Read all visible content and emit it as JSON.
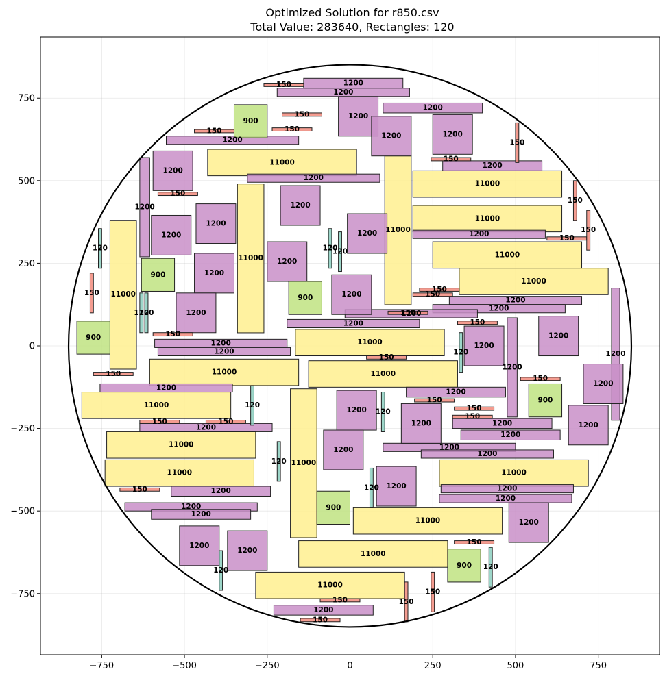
{
  "chart_data": {
    "type": "rectangle-packing",
    "title_line1": "Optimized Solution for r850.csv",
    "title_line2": "Total Value: 283640, Rectangles: 120",
    "xlim": [
      -935,
      935
    ],
    "ylim": [
      -935,
      935
    ],
    "xticks": [
      -750,
      -500,
      -250,
      0,
      250,
      500,
      750
    ],
    "yticks": [
      -750,
      -500,
      -250,
      0,
      250,
      500,
      750
    ],
    "xtick_labels": [
      "−750",
      "−500",
      "−250",
      "0",
      "250",
      "500",
      "750"
    ],
    "ytick_labels": [
      "−750",
      "−500",
      "−250",
      "0",
      "250",
      "500",
      "750"
    ],
    "grid": true,
    "circle": {
      "cx": 0,
      "cy": 0,
      "r": 850
    },
    "colors": {
      "11000": "#fff08f",
      "1200": "#c98fc8",
      "900": "#bfe381",
      "150": "#f28b7d",
      "120": "#8ccfbf"
    },
    "rectangles": [
      {
        "label": "11000",
        "x": -430,
        "y": 515,
        "w": 450,
        "h": 80
      },
      {
        "label": "11000",
        "x": 190,
        "y": 450,
        "w": 450,
        "h": 80
      },
      {
        "label": "11000",
        "x": 190,
        "y": 345,
        "w": 450,
        "h": 80
      },
      {
        "label": "11000",
        "x": 250,
        "y": 235,
        "w": 450,
        "h": 80
      },
      {
        "label": "11000",
        "x": 330,
        "y": 155,
        "w": 450,
        "h": 80
      },
      {
        "label": "11000",
        "x": -340,
        "y": 40,
        "w": 80,
        "h": 450
      },
      {
        "label": "11000",
        "x": 105,
        "y": 125,
        "w": 80,
        "h": 450
      },
      {
        "label": "11000",
        "x": -725,
        "y": -70,
        "w": 80,
        "h": 450
      },
      {
        "label": "11000",
        "x": -165,
        "y": -30,
        "w": 450,
        "h": 80
      },
      {
        "label": "11000",
        "x": -605,
        "y": -120,
        "w": 450,
        "h": 80
      },
      {
        "label": "11000",
        "x": -125,
        "y": -125,
        "w": 450,
        "h": 80
      },
      {
        "label": "11000",
        "x": -810,
        "y": -220,
        "w": 450,
        "h": 80
      },
      {
        "label": "11000",
        "x": -735,
        "y": -340,
        "w": 450,
        "h": 80
      },
      {
        "label": "11000",
        "x": -740,
        "y": -425,
        "w": 450,
        "h": 80
      },
      {
        "label": "11000",
        "x": -180,
        "y": -580,
        "w": 80,
        "h": 450
      },
      {
        "label": "11000",
        "x": 270,
        "y": -425,
        "w": 450,
        "h": 80
      },
      {
        "label": "11000",
        "x": 10,
        "y": -570,
        "w": 450,
        "h": 80
      },
      {
        "label": "11000",
        "x": -155,
        "y": -670,
        "w": 450,
        "h": 80
      },
      {
        "label": "11000",
        "x": -285,
        "y": -765,
        "w": 450,
        "h": 80
      },
      {
        "label": "1200",
        "x": -140,
        "y": 780,
        "w": 300,
        "h": 30
      },
      {
        "label": "1200",
        "x": -220,
        "y": 755,
        "w": 400,
        "h": 25
      },
      {
        "label": "1200",
        "x": 100,
        "y": 705,
        "w": 300,
        "h": 30
      },
      {
        "label": "1200",
        "x": -555,
        "y": 610,
        "w": 400,
        "h": 25
      },
      {
        "label": "1200",
        "x": -310,
        "y": 495,
        "w": 400,
        "h": 25
      },
      {
        "label": "1200",
        "x": 280,
        "y": 530,
        "w": 300,
        "h": 30
      },
      {
        "label": "1200",
        "x": 190,
        "y": 325,
        "w": 400,
        "h": 25
      },
      {
        "label": "1200",
        "x": 300,
        "y": 125,
        "w": 400,
        "h": 25
      },
      {
        "label": "1200",
        "x": 250,
        "y": 100,
        "w": 400,
        "h": 25
      },
      {
        "label": "1200",
        "x": -15,
        "y": 85,
        "w": 400,
        "h": 25
      },
      {
        "label": "1200",
        "x": -190,
        "y": 55,
        "w": 400,
        "h": 25
      },
      {
        "label": "1200",
        "x": -590,
        "y": -5,
        "w": 400,
        "h": 25
      },
      {
        "label": "1200",
        "x": -580,
        "y": -30,
        "w": 400,
        "h": 25
      },
      {
        "label": "1200",
        "x": -755,
        "y": -140,
        "w": 400,
        "h": 25
      },
      {
        "label": "1200",
        "x": 170,
        "y": -155,
        "w": 300,
        "h": 30
      },
      {
        "label": "1200",
        "x": 310,
        "y": -250,
        "w": 300,
        "h": 30
      },
      {
        "label": "1200",
        "x": 335,
        "y": -285,
        "w": 300,
        "h": 30
      },
      {
        "label": "1200",
        "x": -635,
        "y": -260,
        "w": 400,
        "h": 25
      },
      {
        "label": "1200",
        "x": 100,
        "y": -320,
        "w": 400,
        "h": 25
      },
      {
        "label": "1200",
        "x": 215,
        "y": -340,
        "w": 400,
        "h": 25
      },
      {
        "label": "1200",
        "x": -540,
        "y": -455,
        "w": 300,
        "h": 30
      },
      {
        "label": "1200",
        "x": 275,
        "y": -445,
        "w": 400,
        "h": 25
      },
      {
        "label": "1200",
        "x": 270,
        "y": -475,
        "w": 400,
        "h": 25
      },
      {
        "label": "1200",
        "x": -680,
        "y": -500,
        "w": 400,
        "h": 25
      },
      {
        "label": "1200",
        "x": -600,
        "y": -525,
        "w": 300,
        "h": 30
      },
      {
        "label": "1200",
        "x": -230,
        "y": -815,
        "w": 300,
        "h": 30
      },
      {
        "label": "1200",
        "x": -635,
        "y": 270,
        "w": 30,
        "h": 300
      },
      {
        "label": "1200",
        "x": 475,
        "y": -215,
        "w": 30,
        "h": 300
      },
      {
        "label": "1200",
        "x": 790,
        "y": -225,
        "w": 25,
        "h": 400
      },
      {
        "label": "1200",
        "x": -35,
        "y": 635,
        "w": 120,
        "h": 120
      },
      {
        "label": "1200",
        "x": 65,
        "y": 575,
        "w": 120,
        "h": 120
      },
      {
        "label": "1200",
        "x": 250,
        "y": 580,
        "w": 120,
        "h": 120
      },
      {
        "label": "1200",
        "x": -595,
        "y": 470,
        "w": 120,
        "h": 120
      },
      {
        "label": "1200",
        "x": -210,
        "y": 365,
        "w": 120,
        "h": 120
      },
      {
        "label": "1200",
        "x": -465,
        "y": 310,
        "w": 120,
        "h": 120
      },
      {
        "label": "1200",
        "x": -600,
        "y": 275,
        "w": 120,
        "h": 120
      },
      {
        "label": "1200",
        "x": -8,
        "y": 280,
        "w": 120,
        "h": 120
      },
      {
        "label": "1200",
        "x": -250,
        "y": 195,
        "w": 120,
        "h": 120
      },
      {
        "label": "1200",
        "x": -470,
        "y": 160,
        "w": 120,
        "h": 120
      },
      {
        "label": "1200",
        "x": -55,
        "y": 95,
        "w": 120,
        "h": 120
      },
      {
        "label": "1200",
        "x": -525,
        "y": 40,
        "w": 120,
        "h": 120
      },
      {
        "label": "1200",
        "x": 345,
        "y": -60,
        "w": 120,
        "h": 120
      },
      {
        "label": "1200",
        "x": 570,
        "y": -30,
        "w": 120,
        "h": 120
      },
      {
        "label": "1200",
        "x": 705,
        "y": -175,
        "w": 120,
        "h": 120
      },
      {
        "label": "1200",
        "x": -40,
        "y": -255,
        "w": 120,
        "h": 120
      },
      {
        "label": "1200",
        "x": 155,
        "y": -295,
        "w": 120,
        "h": 120
      },
      {
        "label": "1200",
        "x": 660,
        "y": -300,
        "w": 120,
        "h": 120
      },
      {
        "label": "1200",
        "x": -80,
        "y": -375,
        "w": 120,
        "h": 120
      },
      {
        "label": "1200",
        "x": 80,
        "y": -485,
        "w": 120,
        "h": 120
      },
      {
        "label": "1200",
        "x": 480,
        "y": -595,
        "w": 120,
        "h": 120
      },
      {
        "label": "1200",
        "x": -515,
        "y": -665,
        "w": 120,
        "h": 120
      },
      {
        "label": "1200",
        "x": -370,
        "y": -680,
        "w": 120,
        "h": 120
      },
      {
        "label": "900",
        "x": -350,
        "y": 630,
        "w": 100,
        "h": 100
      },
      {
        "label": "900",
        "x": -630,
        "y": 165,
        "w": 100,
        "h": 100
      },
      {
        "label": "900",
        "x": -185,
        "y": 95,
        "w": 100,
        "h": 100
      },
      {
        "label": "900",
        "x": -825,
        "y": -25,
        "w": 100,
        "h": 100
      },
      {
        "label": "900",
        "x": 540,
        "y": -215,
        "w": 100,
        "h": 100
      },
      {
        "label": "900",
        "x": -100,
        "y": -540,
        "w": 100,
        "h": 100
      },
      {
        "label": "900",
        "x": 295,
        "y": -715,
        "w": 100,
        "h": 100
      },
      {
        "label": "150",
        "x": -260,
        "y": 785,
        "w": 120,
        "h": 10
      },
      {
        "label": "150",
        "x": -205,
        "y": 695,
        "w": 120,
        "h": 10
      },
      {
        "label": "150",
        "x": -470,
        "y": 645,
        "w": 120,
        "h": 10
      },
      {
        "label": "150",
        "x": -235,
        "y": 650,
        "w": 120,
        "h": 10
      },
      {
        "label": "150",
        "x": -580,
        "y": 455,
        "w": 120,
        "h": 10
      },
      {
        "label": "150",
        "x": 245,
        "y": 560,
        "w": 120,
        "h": 10
      },
      {
        "label": "150",
        "x": 595,
        "y": 320,
        "w": 120,
        "h": 10
      },
      {
        "label": "150",
        "x": 210,
        "y": 165,
        "w": 120,
        "h": 10
      },
      {
        "label": "150",
        "x": 190,
        "y": 150,
        "w": 120,
        "h": 10
      },
      {
        "label": "150",
        "x": 115,
        "y": 95,
        "w": 120,
        "h": 10
      },
      {
        "label": "150",
        "x": 325,
        "y": 65,
        "w": 120,
        "h": 10
      },
      {
        "label": "150",
        "x": -595,
        "y": 30,
        "w": 120,
        "h": 10
      },
      {
        "label": "150",
        "x": 50,
        "y": -40,
        "w": 120,
        "h": 10
      },
      {
        "label": "150",
        "x": -775,
        "y": -90,
        "w": 120,
        "h": 10
      },
      {
        "label": "150",
        "x": 515,
        "y": -105,
        "w": 120,
        "h": 10
      },
      {
        "label": "150",
        "x": 195,
        "y": -170,
        "w": 120,
        "h": 10
      },
      {
        "label": "150",
        "x": 315,
        "y": -195,
        "w": 120,
        "h": 10
      },
      {
        "label": "150",
        "x": 310,
        "y": -220,
        "w": 120,
        "h": 10
      },
      {
        "label": "150",
        "x": -635,
        "y": -235,
        "w": 120,
        "h": 10
      },
      {
        "label": "150",
        "x": -435,
        "y": -235,
        "w": 120,
        "h": 10
      },
      {
        "label": "150",
        "x": -695,
        "y": -440,
        "w": 120,
        "h": 10
      },
      {
        "label": "150",
        "x": 315,
        "y": -600,
        "w": 120,
        "h": 10
      },
      {
        "label": "150",
        "x": -90,
        "y": -775,
        "w": 120,
        "h": 10
      },
      {
        "label": "150",
        "x": -150,
        "y": -835,
        "w": 120,
        "h": 10
      },
      {
        "label": "150",
        "x": 500,
        "y": 555,
        "w": 10,
        "h": 120
      },
      {
        "label": "150",
        "x": 675,
        "y": 380,
        "w": 10,
        "h": 120
      },
      {
        "label": "150",
        "x": 715,
        "y": 290,
        "w": 10,
        "h": 120
      },
      {
        "label": "150",
        "x": -785,
        "y": 100,
        "w": 10,
        "h": 120
      },
      {
        "label": "150",
        "x": 165,
        "y": -835,
        "w": 10,
        "h": 120
      },
      {
        "label": "150",
        "x": 245,
        "y": -805,
        "w": 10,
        "h": 120
      },
      {
        "label": "120",
        "x": -760,
        "y": 235,
        "w": 10,
        "h": 120
      },
      {
        "label": "120",
        "x": -65,
        "y": 235,
        "w": 10,
        "h": 120
      },
      {
        "label": "120",
        "x": -35,
        "y": 225,
        "w": 10,
        "h": 120
      },
      {
        "label": "120",
        "x": -635,
        "y": 40,
        "w": 10,
        "h": 120
      },
      {
        "label": "120",
        "x": -620,
        "y": 40,
        "w": 10,
        "h": 120
      },
      {
        "label": "120",
        "x": 330,
        "y": -80,
        "w": 10,
        "h": 120
      },
      {
        "label": "120",
        "x": -300,
        "y": -240,
        "w": 10,
        "h": 120
      },
      {
        "label": "120",
        "x": 95,
        "y": -260,
        "w": 10,
        "h": 120
      },
      {
        "label": "120",
        "x": -220,
        "y": -410,
        "w": 10,
        "h": 120
      },
      {
        "label": "120",
        "x": 60,
        "y": -490,
        "w": 10,
        "h": 120
      },
      {
        "label": "120",
        "x": -395,
        "y": -740,
        "w": 10,
        "h": 120
      },
      {
        "label": "120",
        "x": 420,
        "y": -730,
        "w": 10,
        "h": 120
      }
    ]
  }
}
